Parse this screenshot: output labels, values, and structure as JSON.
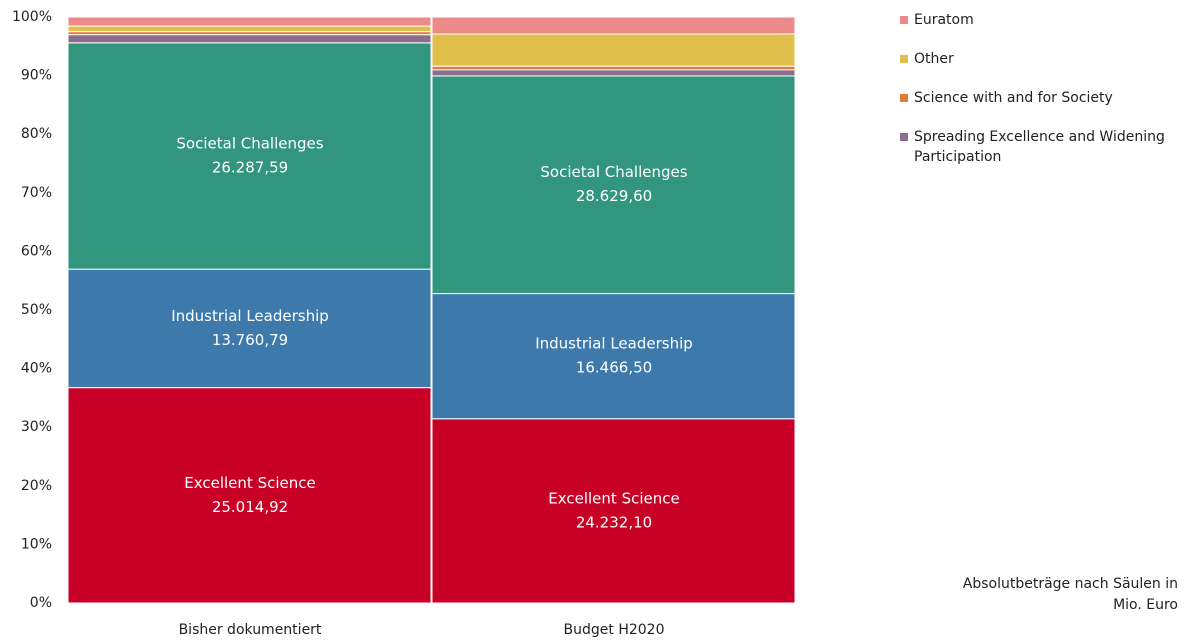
{
  "chart_data": {
    "type": "bar",
    "stacking": "percent",
    "categories": [
      "Bisher dokumentiert",
      "Budget H2020"
    ],
    "ylim": [
      0,
      100
    ],
    "yticks": [
      {
        "value": 0,
        "label": "0%"
      },
      {
        "value": 10,
        "label": "10%"
      },
      {
        "value": 20,
        "label": "20%"
      },
      {
        "value": 30,
        "label": "30%"
      },
      {
        "value": 40,
        "label": "40%"
      },
      {
        "value": 50,
        "label": "50%"
      },
      {
        "value": 60,
        "label": "60%"
      },
      {
        "value": 70,
        "label": "70%"
      },
      {
        "value": 80,
        "label": "80%"
      },
      {
        "value": 90,
        "label": "90%"
      },
      {
        "value": 100,
        "label": "100%"
      }
    ],
    "series": [
      {
        "name": "Excellent Science",
        "color": "#c80025",
        "values": [
          25014.92,
          24232.1
        ],
        "value_labels": [
          "25.014,92",
          "24.232,10"
        ]
      },
      {
        "name": "Industrial Leadership",
        "color": "#3d7aab",
        "values": [
          13760.79,
          16466.5
        ],
        "value_labels": [
          "13.760,79",
          "16.466,50"
        ]
      },
      {
        "name": "Societal Challenges",
        "color": "#31967d",
        "values": [
          26287.59,
          28629.6
        ],
        "value_labels": [
          "26.287,59",
          "28.629,60"
        ]
      },
      {
        "name": "Spreading Excellence and Widening Participation",
        "color": "#8a6d8f",
        "values": [
          950,
          816
        ]
      },
      {
        "name": "Science with and for Society",
        "color": "#e07b39",
        "values": [
          350,
          462
        ]
      },
      {
        "name": "Other",
        "color": "#e0c04a",
        "values": [
          650,
          4236
        ]
      },
      {
        "name": "Euratom",
        "color": "#ec8a8a",
        "values": [
          1050,
          2234
        ]
      }
    ],
    "note": "Absolutbeträge nach Säulen in Mio. Euro"
  }
}
